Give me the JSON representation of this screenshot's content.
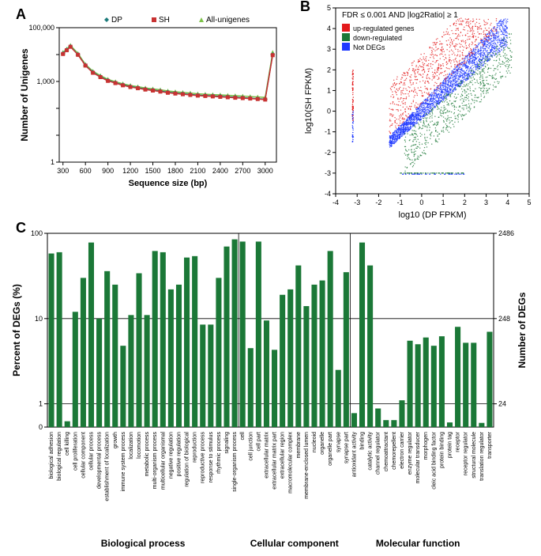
{
  "panelA": {
    "label": "A",
    "ylabel": "Number of Unigenes",
    "xlabel": "Sequence size (bp)",
    "yticks": [
      1,
      10,
      100,
      1000,
      10000,
      100000
    ],
    "ytick_labels": [
      "1",
      "",
      "",
      "1,000",
      "",
      "100,000"
    ],
    "xticks": [
      300,
      600,
      900,
      1200,
      1500,
      1800,
      2100,
      2400,
      2700,
      3000
    ],
    "xtick_labels": [
      "300",
      "600",
      "900",
      "1200",
      "1500",
      "1800",
      "2100",
      "2400",
      "2700",
      "3000"
    ],
    "legend": [
      {
        "name": "DP",
        "color": "#1a7a7a",
        "marker": "diamond"
      },
      {
        "name": "SH",
        "color": "#c83232",
        "marker": "square"
      },
      {
        "name": "All-unigenes",
        "color": "#7cc247",
        "marker": "triangle"
      }
    ],
    "series": {
      "DP": [
        11000,
        15000,
        20000,
        10000,
        4000,
        2200,
        1500,
        1100,
        900,
        750,
        650,
        580,
        520,
        480,
        440,
        400,
        370,
        350,
        330,
        310,
        300,
        290,
        280,
        270,
        260,
        250,
        240,
        230,
        220,
        10000
      ],
      "SH": [
        10500,
        14500,
        19500,
        9800,
        3900,
        2100,
        1450,
        1050,
        870,
        720,
        620,
        560,
        500,
        460,
        420,
        380,
        355,
        335,
        315,
        298,
        288,
        278,
        268,
        258,
        248,
        240,
        232,
        222,
        212,
        9500
      ],
      "All": [
        12000,
        16000,
        22000,
        11000,
        4300,
        2400,
        1650,
        1200,
        980,
        820,
        710,
        640,
        570,
        530,
        490,
        445,
        415,
        390,
        370,
        348,
        335,
        325,
        315,
        305,
        295,
        285,
        275,
        265,
        255,
        12000
      ]
    },
    "xvals": [
      300,
      350,
      400,
      500,
      600,
      700,
      800,
      900,
      1000,
      1100,
      1200,
      1300,
      1400,
      1500,
      1600,
      1700,
      1800,
      1900,
      2000,
      2100,
      2200,
      2300,
      2400,
      2500,
      2600,
      2700,
      2800,
      2900,
      3000,
      3100
    ]
  },
  "panelB": {
    "label": "B",
    "title": "FDR ≤ 0.001 AND |log2Ratio| ≥ 1",
    "legend": [
      {
        "name": "up-regulated genes",
        "color": "#e31a1c"
      },
      {
        "name": "down-regulated",
        "color": "#1b7837"
      },
      {
        "name": "Not DEGs",
        "color": "#1f3aff"
      }
    ],
    "xlabel": "log10 (DP FPKM)",
    "ylabel": "log10(SH FPKM)",
    "xlim": [
      -4,
      5
    ],
    "ylim": [
      -4,
      5
    ],
    "ticks": [
      -4,
      -3,
      -2,
      -1,
      0,
      1,
      2,
      3,
      4,
      5
    ]
  },
  "panelC": {
    "label": "C",
    "ylabel_left": "Percent of DEGs (%)",
    "ylabel_right": "Number of DEGs",
    "yticks_left": [
      0,
      1,
      10,
      100
    ],
    "yticks_left_labels": [
      "0",
      "1",
      "10",
      "100"
    ],
    "yticks_right": [
      0,
      24,
      248,
      2486
    ],
    "yticks_right_labels": [
      "",
      "24",
      "248",
      "2486"
    ],
    "bar_color": "#1b7837",
    "sections": [
      {
        "name": "Biological process",
        "start": 0,
        "end": 24
      },
      {
        "name": "Cellular component",
        "start": 24,
        "end": 38
      },
      {
        "name": "Molecular function",
        "start": 38,
        "end": 55
      }
    ],
    "bars": [
      {
        "label": "biological adhesion",
        "value": 58
      },
      {
        "label": "biological regulation",
        "value": 60
      },
      {
        "label": "cell killing",
        "value": 0.25
      },
      {
        "label": "cell proliferation",
        "value": 12
      },
      {
        "label": "cellular component",
        "value": 30
      },
      {
        "label": "cellular process",
        "value": 78
      },
      {
        "label": "developmental process",
        "value": 10
      },
      {
        "label": "establishment of localization",
        "value": 36
      },
      {
        "label": "growth",
        "value": 25
      },
      {
        "label": "immune system process",
        "value": 4.8
      },
      {
        "label": "localization",
        "value": 11
      },
      {
        "label": "locomotion",
        "value": 34
      },
      {
        "label": "metabolic process",
        "value": 11
      },
      {
        "label": "multi-organism process",
        "value": 62
      },
      {
        "label": "multicellular organismal",
        "value": 60
      },
      {
        "label": "negative regulation",
        "value": 22
      },
      {
        "label": "positive regulation",
        "value": 25
      },
      {
        "label": "regulation of biological",
        "value": 52
      },
      {
        "label": "reproduction",
        "value": 54
      },
      {
        "label": "reproductive process",
        "value": 8.5
      },
      {
        "label": "response to stimulus",
        "value": 8.5
      },
      {
        "label": "rhythmic process",
        "value": 30
      },
      {
        "label": "signaling",
        "value": 70
      },
      {
        "label": "single-organism process",
        "value": 85
      },
      {
        "label": "cell",
        "value": 80
      },
      {
        "label": "cell junction",
        "value": 4.5
      },
      {
        "label": "cell part",
        "value": 80
      },
      {
        "label": "extracellular matrix",
        "value": 9.5
      },
      {
        "label": "extracellular matrix part",
        "value": 4.3
      },
      {
        "label": "extracellular region",
        "value": 19
      },
      {
        "label": "macromolecular complex",
        "value": 22
      },
      {
        "label": "membrane",
        "value": 42
      },
      {
        "label": "membrane-enclosed lumen",
        "value": 14
      },
      {
        "label": "nucleoid",
        "value": 25
      },
      {
        "label": "organelle",
        "value": 28
      },
      {
        "label": "organelle part",
        "value": 62
      },
      {
        "label": "synapse",
        "value": 2.5
      },
      {
        "label": "synapse part",
        "value": 35
      },
      {
        "label": "antioxidant activity",
        "value": 0.6
      },
      {
        "label": "binding",
        "value": 78
      },
      {
        "label": "catalytic activity",
        "value": 42
      },
      {
        "label": "channel regulator",
        "value": 0.8
      },
      {
        "label": "chemoattractant",
        "value": 0.3
      },
      {
        "label": "chemorepellent",
        "value": 0.3
      },
      {
        "label": "electron carrier",
        "value": 1.1
      },
      {
        "label": "enzyme regulator",
        "value": 5.5
      },
      {
        "label": "molecular transducer",
        "value": 5
      },
      {
        "label": "morphogen",
        "value": 6
      },
      {
        "label": "cleic acid binding factor",
        "value": 4.8
      },
      {
        "label": "protein binding",
        "value": 6.2
      },
      {
        "label": "protein tag",
        "value": 0.2
      },
      {
        "label": "receptor",
        "value": 8
      },
      {
        "label": "receptor regulator",
        "value": 5.2
      },
      {
        "label": "structural molecule",
        "value": 5.2
      },
      {
        "label": "translation regulator",
        "value": 0.18
      },
      {
        "label": "transporter",
        "value": 7
      }
    ]
  }
}
